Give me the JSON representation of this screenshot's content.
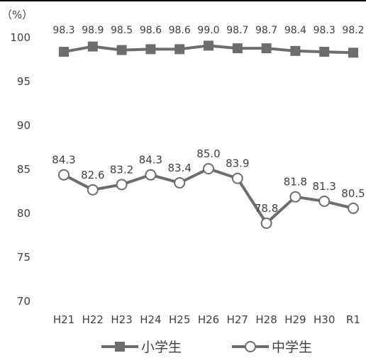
{
  "chart_data": {
    "type": "line",
    "unit_label": "（%）",
    "categories": [
      "H21",
      "H22",
      "H23",
      "H24",
      "H25",
      "H26",
      "H27",
      "H28",
      "H29",
      "H30",
      "R1"
    ],
    "ylim": [
      70,
      100
    ],
    "yticks": [
      70,
      75,
      80,
      85,
      90,
      95,
      100
    ],
    "grid": false,
    "legend_position": "bottom",
    "series": [
      {
        "name": "小学生",
        "marker": "square",
        "color": "#6d6d6d",
        "values": [
          98.3,
          98.9,
          98.5,
          98.6,
          98.6,
          99.0,
          98.7,
          98.7,
          98.4,
          98.3,
          98.2
        ],
        "labels": [
          "98.3",
          "98.9",
          "98.5",
          "98.6",
          "98.6",
          "99.0",
          "98.7",
          "98.7",
          "98.4",
          "98.3",
          "98.2"
        ]
      },
      {
        "name": "中学生",
        "marker": "circle-open",
        "color": "#6d6d6d",
        "values": [
          84.3,
          82.6,
          83.2,
          84.3,
          83.4,
          85.0,
          83.9,
          78.8,
          81.8,
          81.3,
          80.5
        ],
        "labels": [
          "84.3",
          "82.6",
          "83.2",
          "84.3",
          "83.4",
          "85.0",
          "83.9",
          "78.8",
          "81.8",
          "81.3",
          "80.5"
        ]
      }
    ]
  }
}
